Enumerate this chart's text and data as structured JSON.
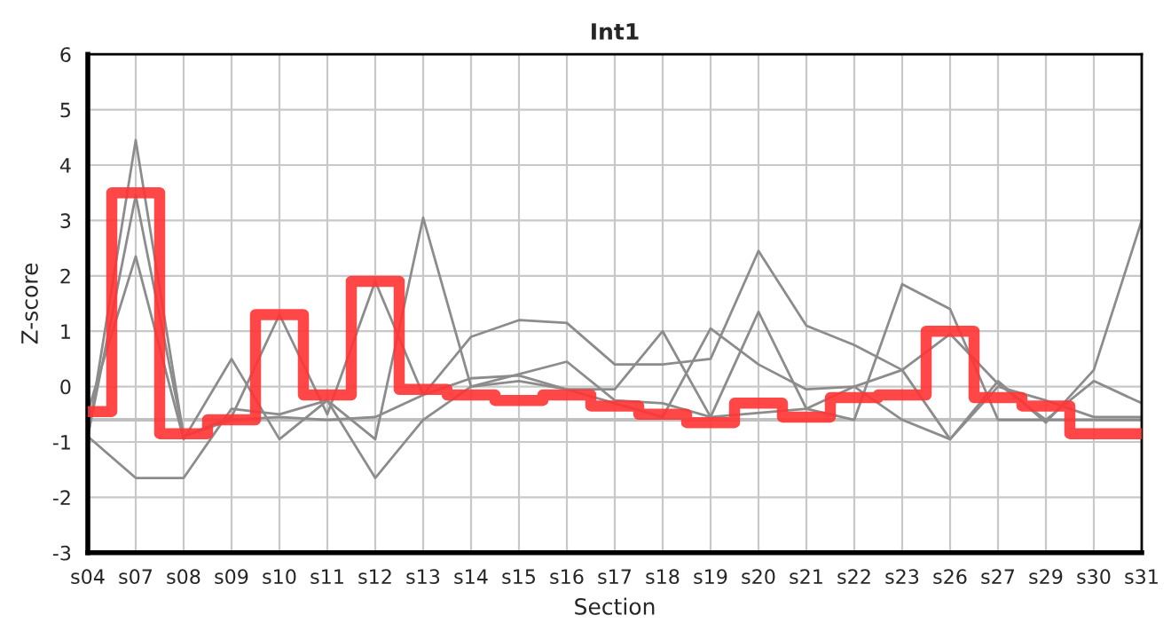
{
  "chart_data": {
    "type": "line",
    "title": "Int1",
    "xlabel": "Section",
    "ylabel": "Z-score",
    "categories": [
      "s04",
      "s07",
      "s08",
      "s09",
      "s10",
      "s11",
      "s12",
      "s13",
      "s14",
      "s15",
      "s16",
      "s17",
      "s18",
      "s19",
      "s20",
      "s21",
      "s22",
      "s23",
      "s26",
      "s27",
      "s29",
      "s30",
      "s31"
    ],
    "series": [
      {
        "type": "line",
        "color": "#c0c0c0",
        "values": [
          -0.6,
          -0.6,
          -0.6,
          -0.6,
          -0.6,
          -0.6,
          -0.6,
          -0.6,
          -0.6,
          -0.6,
          -0.6,
          -0.6,
          -0.6,
          -0.6,
          -0.6,
          -0.6,
          -0.6,
          -0.6,
          -0.6,
          -0.6,
          -0.6,
          -0.6,
          -0.6
        ]
      },
      {
        "type": "line",
        "color": "#8c8c8c",
        "values": [
          -0.9,
          4.45,
          -0.9,
          -0.6,
          -0.55,
          -0.6,
          -0.55,
          -0.15,
          0.15,
          0.2,
          -0.05,
          -0.3,
          -0.55,
          1.05,
          0.4,
          -0.05,
          0.0,
          0.3,
          0.95,
          0.05,
          -0.6,
          -0.6,
          -0.6
        ]
      },
      {
        "type": "line",
        "color": "#8c8c8c",
        "values": [
          -0.9,
          -1.65,
          -1.65,
          -0.4,
          -0.5,
          -0.25,
          -1.65,
          -0.6,
          0.0,
          0.1,
          -0.05,
          -0.05,
          1.0,
          -0.55,
          1.35,
          -0.4,
          0.0,
          -0.6,
          -0.95,
          0.1,
          -0.65,
          0.3,
          3.0
        ]
      },
      {
        "type": "line",
        "color": "#8c8c8c",
        "values": [
          -0.45,
          2.35,
          -0.95,
          0.5,
          -0.95,
          -0.25,
          -0.95,
          3.05,
          0.0,
          null,
          0.45,
          -0.25,
          -0.3,
          -0.55,
          null,
          -0.4,
          -0.6,
          1.85,
          1.4,
          -0.6,
          -0.6,
          0.1,
          -0.3
        ]
      },
      {
        "type": "line",
        "color": "#8c8c8c",
        "values": [
          -0.9,
          3.45,
          -0.9,
          -0.55,
          1.3,
          -0.5,
          1.9,
          -0.15,
          0.9,
          1.2,
          1.15,
          0.4,
          0.4,
          0.5,
          2.45,
          1.1,
          0.75,
          0.3,
          -0.95,
          0.0,
          -0.25,
          -0.55,
          -0.55
        ]
      },
      {
        "type": "step",
        "color": "#ff3333",
        "values": [
          -0.45,
          3.5,
          -0.85,
          -0.6,
          1.3,
          -0.15,
          1.9,
          -0.05,
          -0.15,
          -0.25,
          -0.15,
          -0.35,
          -0.5,
          -0.65,
          -0.3,
          -0.55,
          -0.2,
          -0.15,
          1.0,
          -0.2,
          -0.35,
          -0.85,
          -0.85
        ]
      }
    ],
    "ylim": [
      -3,
      6
    ],
    "yticks": [
      -3,
      -2,
      -1,
      0,
      1,
      2,
      3,
      4,
      5,
      6
    ],
    "grid": true
  }
}
